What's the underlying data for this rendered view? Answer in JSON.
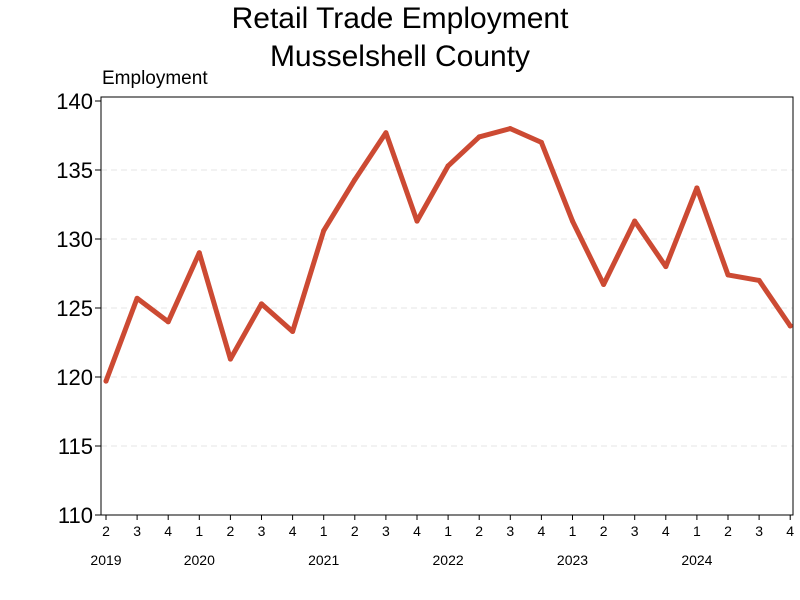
{
  "chart_data": {
    "type": "line",
    "title": "Retail Trade Employment",
    "subtitle": "Musselshell County",
    "ylabel": "Employment",
    "xlabel": "",
    "ylim": [
      110,
      140
    ],
    "yticks": [
      110,
      115,
      120,
      125,
      130,
      135,
      140
    ],
    "grid": true,
    "x": [
      "2019 Q2",
      "2019 Q3",
      "2019 Q4",
      "2020 Q1",
      "2020 Q2",
      "2020 Q3",
      "2020 Q4",
      "2021 Q1",
      "2021 Q2",
      "2021 Q3",
      "2021 Q4",
      "2022 Q1",
      "2022 Q2",
      "2022 Q3",
      "2022 Q4",
      "2023 Q1",
      "2023 Q2",
      "2023 Q3",
      "2023 Q4",
      "2024 Q1",
      "2024 Q2",
      "2024 Q3",
      "2024 Q4"
    ],
    "quarter_labels": [
      "2",
      "3",
      "4",
      "1",
      "2",
      "3",
      "4",
      "1",
      "2",
      "3",
      "4",
      "1",
      "2",
      "3",
      "4",
      "1",
      "2",
      "3",
      "4",
      "1",
      "2",
      "3",
      "4"
    ],
    "year_labels": [
      {
        "label": "2019",
        "index": 0
      },
      {
        "label": "2020",
        "index": 3
      },
      {
        "label": "2021",
        "index": 7
      },
      {
        "label": "2022",
        "index": 11
      },
      {
        "label": "2023",
        "index": 15
      },
      {
        "label": "2024",
        "index": 19
      }
    ],
    "series": [
      {
        "values": [
          119.7,
          125.7,
          124.0,
          129.0,
          121.3,
          125.3,
          123.3,
          130.6,
          134.3,
          137.7,
          131.3,
          135.3,
          137.4,
          138.0,
          137.0,
          131.3,
          126.7,
          131.3,
          128.0,
          133.7,
          127.4,
          127.0,
          123.7
        ],
        "color": "#cc4a33"
      }
    ]
  }
}
